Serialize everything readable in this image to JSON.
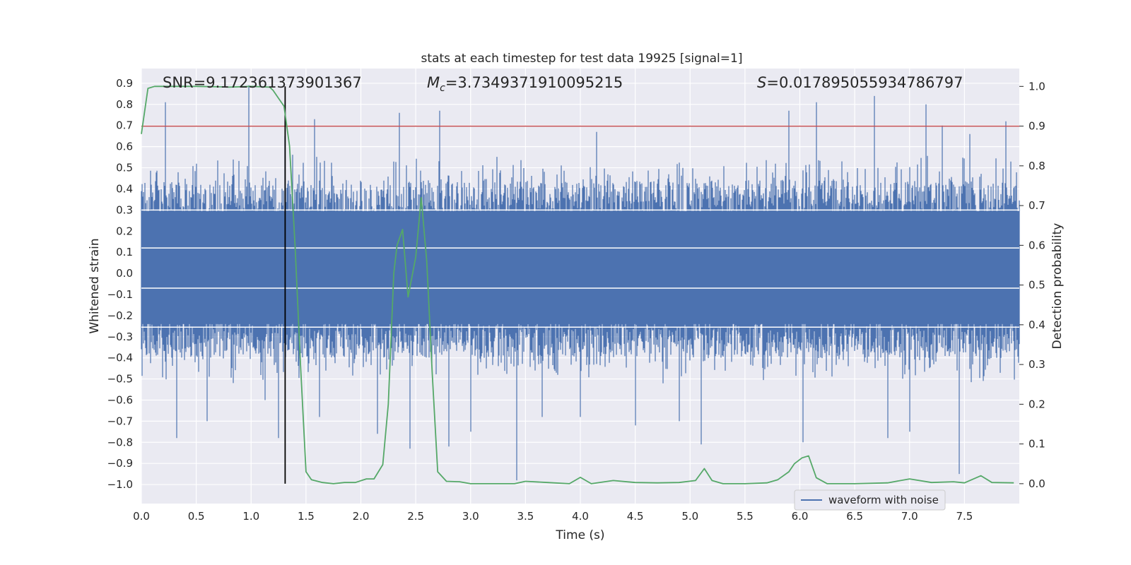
{
  "chart_data": {
    "type": "line",
    "title": "stats at each timestep for test data 19925 [signal=1]",
    "xlabel": "Time (s)",
    "ylabel_left": "Whitened strain",
    "ylabel_right": "Detection probability",
    "xlim": [
      0.0,
      8.0
    ],
    "ylim_left": [
      -1.09,
      0.97
    ],
    "ylim_right": [
      -0.05,
      1.045
    ],
    "x_ticks": [
      "0.0",
      "0.5",
      "1.0",
      "1.5",
      "2.0",
      "2.5",
      "3.0",
      "3.5",
      "4.0",
      "4.5",
      "5.0",
      "5.5",
      "6.0",
      "6.5",
      "7.0",
      "7.5"
    ],
    "y_left_ticks": [
      "0.9",
      "0.8",
      "0.7",
      "0.6",
      "0.5",
      "0.4",
      "0.3",
      "0.2",
      "0.1",
      "0.0",
      "−0.1",
      "−0.2",
      "−0.3",
      "−0.4",
      "−0.5",
      "−0.6",
      "−0.7",
      "−0.8",
      "−0.9",
      "−1.0"
    ],
    "y_right_ticks": [
      "1.0",
      "0.9",
      "0.8",
      "0.7",
      "0.6",
      "0.5",
      "0.4",
      "0.3",
      "0.2",
      "0.1",
      "0.0"
    ],
    "grid": true,
    "threshold_line": {
      "value_right_axis": 0.9,
      "color": "#c44e52"
    },
    "marker_line": {
      "x": 1.31,
      "color": "#000000"
    },
    "annotations": {
      "snr_name": "SNR",
      "snr_value": "=9.172361373901367",
      "mc_name": "M",
      "mc_sub": "c",
      "mc_value": "=3.7349371910095215",
      "s_name": "S",
      "s_value": "=0.017895055934786797"
    },
    "legend": {
      "label": "waveform with noise",
      "placement": "lower-right"
    },
    "series": [
      {
        "name": "waveform with noise",
        "axis": "left",
        "color": "#4c72b0",
        "description": "whitened noisy strain, dense noise spanning about -0.45..0.55 with spikes",
        "spikes": [
          [
            0.22,
            0.81
          ],
          [
            0.32,
            -0.78
          ],
          [
            0.6,
            -0.7
          ],
          [
            0.98,
            0.89
          ],
          [
            1.13,
            -0.6
          ],
          [
            1.25,
            -0.78
          ],
          [
            1.31,
            0.65
          ],
          [
            1.58,
            0.73
          ],
          [
            1.62,
            -0.68
          ],
          [
            2.15,
            -0.76
          ],
          [
            2.35,
            0.76
          ],
          [
            2.45,
            -0.83
          ],
          [
            2.72,
            0.77
          ],
          [
            2.8,
            -0.82
          ],
          [
            3.0,
            -0.75
          ],
          [
            3.42,
            -0.98
          ],
          [
            3.65,
            -0.68
          ],
          [
            4.0,
            -0.68
          ],
          [
            4.15,
            0.67
          ],
          [
            4.5,
            -0.72
          ],
          [
            4.9,
            -0.7
          ],
          [
            5.1,
            -0.81
          ],
          [
            5.9,
            0.77
          ],
          [
            6.03,
            -0.8
          ],
          [
            6.15,
            0.81
          ],
          [
            6.68,
            0.84
          ],
          [
            6.8,
            -0.78
          ],
          [
            7.0,
            -0.75
          ],
          [
            7.15,
            0.8
          ],
          [
            7.3,
            0.7
          ],
          [
            7.45,
            -0.95
          ],
          [
            7.55,
            0.66
          ],
          [
            7.88,
            0.72
          ]
        ]
      },
      {
        "name": "detection probability",
        "axis": "right",
        "color": "#55a868",
        "x": [
          0.0,
          0.06,
          0.12,
          0.3,
          0.5,
          0.7,
          0.8,
          1.0,
          1.17,
          1.2,
          1.25,
          1.3,
          1.35,
          1.4,
          1.45,
          1.5,
          1.55,
          1.65,
          1.75,
          1.85,
          1.95,
          2.05,
          2.12,
          2.2,
          2.25,
          2.3,
          2.33,
          2.38,
          2.43,
          2.5,
          2.55,
          2.6,
          2.65,
          2.7,
          2.78,
          2.9,
          3.0,
          3.2,
          3.4,
          3.5,
          3.7,
          3.9,
          4.0,
          4.1,
          4.3,
          4.5,
          4.7,
          4.9,
          5.05,
          5.13,
          5.2,
          5.3,
          5.5,
          5.7,
          5.8,
          5.9,
          5.95,
          6.02,
          6.08,
          6.15,
          6.25,
          6.5,
          6.8,
          7.0,
          7.2,
          7.4,
          7.5,
          7.65,
          7.75,
          7.95
        ],
        "y": [
          0.88,
          0.995,
          1.0,
          1.0,
          1.0,
          0.999,
          0.998,
          1.0,
          0.998,
          0.99,
          0.97,
          0.95,
          0.85,
          0.6,
          0.3,
          0.03,
          0.01,
          0.003,
          0.0,
          0.003,
          0.003,
          0.012,
          0.012,
          0.048,
          0.2,
          0.53,
          0.6,
          0.64,
          0.47,
          0.57,
          0.72,
          0.56,
          0.28,
          0.03,
          0.006,
          0.005,
          0.0,
          0.0,
          0.0,
          0.006,
          0.003,
          0.0,
          0.016,
          0.0,
          0.008,
          0.003,
          0.002,
          0.003,
          0.008,
          0.038,
          0.008,
          0.0,
          0.0,
          0.002,
          0.01,
          0.03,
          0.05,
          0.065,
          0.07,
          0.015,
          0.0,
          0.0,
          0.002,
          0.012,
          0.003,
          0.005,
          0.002,
          0.02,
          0.003,
          0.002
        ]
      }
    ]
  }
}
